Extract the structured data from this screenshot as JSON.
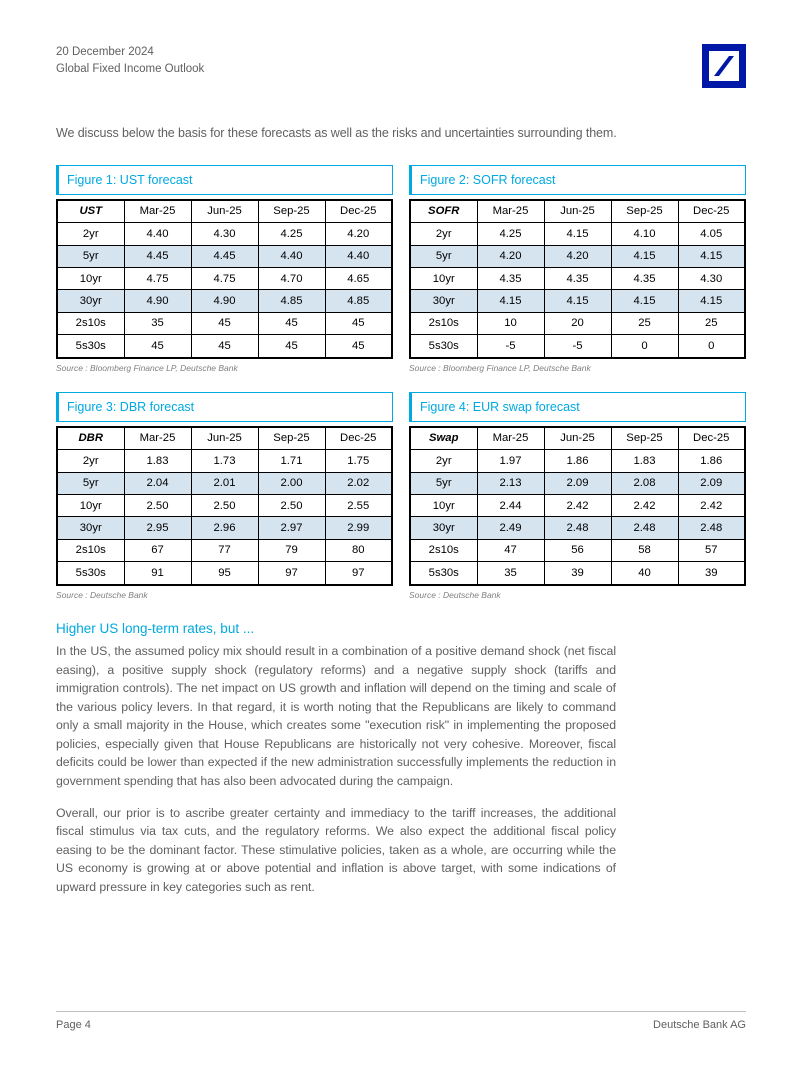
{
  "header": {
    "date": "20 December 2024",
    "title": "Global Fixed Income Outlook"
  },
  "colors": {
    "accent": "#00a9e0",
    "logoBlue": "#0018a8",
    "shadeRow": "#d6e4f0",
    "textGray": "#606060"
  },
  "intro": "We discuss below the basis for these forecasts as well as the risks and uncertainties surrounding them.",
  "figures": [
    {
      "title": "Figure 1: UST forecast",
      "source": "Source : Bloomberg Finance LP, Deutsche Bank",
      "headName": "UST",
      "columns": [
        "Mar-25",
        "Jun-25",
        "Sep-25",
        "Dec-25"
      ],
      "rows": [
        {
          "label": "2yr",
          "shade": false,
          "vals": [
            "4.40",
            "4.30",
            "4.25",
            "4.20"
          ]
        },
        {
          "label": "5yr",
          "shade": true,
          "vals": [
            "4.45",
            "4.45",
            "4.40",
            "4.40"
          ]
        },
        {
          "label": "10yr",
          "shade": false,
          "vals": [
            "4.75",
            "4.75",
            "4.70",
            "4.65"
          ]
        },
        {
          "label": "30yr",
          "shade": true,
          "vals": [
            "4.90",
            "4.90",
            "4.85",
            "4.85"
          ]
        },
        {
          "label": "2s10s",
          "shade": false,
          "vals": [
            "35",
            "45",
            "45",
            "45"
          ]
        },
        {
          "label": "5s30s",
          "shade": false,
          "vals": [
            "45",
            "45",
            "45",
            "45"
          ]
        }
      ]
    },
    {
      "title": "Figure 2: SOFR forecast",
      "source": "Source : Bloomberg Finance LP, Deutsche Bank",
      "headName": "SOFR",
      "columns": [
        "Mar-25",
        "Jun-25",
        "Sep-25",
        "Dec-25"
      ],
      "rows": [
        {
          "label": "2yr",
          "shade": false,
          "vals": [
            "4.25",
            "4.15",
            "4.10",
            "4.05"
          ]
        },
        {
          "label": "5yr",
          "shade": true,
          "vals": [
            "4.20",
            "4.20",
            "4.15",
            "4.15"
          ]
        },
        {
          "label": "10yr",
          "shade": false,
          "vals": [
            "4.35",
            "4.35",
            "4.35",
            "4.30"
          ]
        },
        {
          "label": "30yr",
          "shade": true,
          "vals": [
            "4.15",
            "4.15",
            "4.15",
            "4.15"
          ]
        },
        {
          "label": "2s10s",
          "shade": false,
          "vals": [
            "10",
            "20",
            "25",
            "25"
          ]
        },
        {
          "label": "5s30s",
          "shade": false,
          "vals": [
            "-5",
            "-5",
            "0",
            "0"
          ]
        }
      ]
    },
    {
      "title": "Figure 3: DBR forecast",
      "source": "Source : Deutsche Bank",
      "headName": "DBR",
      "columns": [
        "Mar-25",
        "Jun-25",
        "Sep-25",
        "Dec-25"
      ],
      "rows": [
        {
          "label": "2yr",
          "shade": false,
          "vals": [
            "1.83",
            "1.73",
            "1.71",
            "1.75"
          ]
        },
        {
          "label": "5yr",
          "shade": true,
          "vals": [
            "2.04",
            "2.01",
            "2.00",
            "2.02"
          ]
        },
        {
          "label": "10yr",
          "shade": false,
          "vals": [
            "2.50",
            "2.50",
            "2.50",
            "2.55"
          ]
        },
        {
          "label": "30yr",
          "shade": true,
          "vals": [
            "2.95",
            "2.96",
            "2.97",
            "2.99"
          ]
        },
        {
          "label": "2s10s",
          "shade": false,
          "vals": [
            "67",
            "77",
            "79",
            "80"
          ]
        },
        {
          "label": "5s30s",
          "shade": false,
          "vals": [
            "91",
            "95",
            "97",
            "97"
          ]
        }
      ]
    },
    {
      "title": "Figure 4: EUR swap forecast",
      "source": "Source : Deutsche Bank",
      "headName": "Swap",
      "columns": [
        "Mar-25",
        "Jun-25",
        "Sep-25",
        "Dec-25"
      ],
      "rows": [
        {
          "label": "2yr",
          "shade": false,
          "vals": [
            "1.97",
            "1.86",
            "1.83",
            "1.86"
          ]
        },
        {
          "label": "5yr",
          "shade": true,
          "vals": [
            "2.13",
            "2.09",
            "2.08",
            "2.09"
          ]
        },
        {
          "label": "10yr",
          "shade": false,
          "vals": [
            "2.44",
            "2.42",
            "2.42",
            "2.42"
          ]
        },
        {
          "label": "30yr",
          "shade": true,
          "vals": [
            "2.49",
            "2.48",
            "2.48",
            "2.48"
          ]
        },
        {
          "label": "2s10s",
          "shade": false,
          "vals": [
            "47",
            "56",
            "58",
            "57"
          ]
        },
        {
          "label": "5s30s",
          "shade": false,
          "vals": [
            "35",
            "39",
            "40",
            "39"
          ]
        }
      ]
    }
  ],
  "section": {
    "heading": "Higher US long-term rates, but ...",
    "p1": "In the US, the assumed policy mix should result in a combination of a positive demand shock (net fiscal easing), a positive supply shock (regulatory reforms) and a negative supply shock (tariffs and immigration controls). The net impact on US growth and inflation will depend on the timing and scale of the various policy levers. In that regard, it is worth noting that the Republicans are likely to command only a small majority in the House, which creates some \"execution risk\" in implementing the proposed policies, especially given that House Republicans are historically not very cohesive. Moreover, fiscal deficits could be lower than expected if the new administration successfully implements the reduction in government spending that has also been advocated during the campaign.",
    "p2": "Overall, our prior is to ascribe greater certainty and immediacy to the tariff increases, the additional fiscal stimulus via tax cuts, and the regulatory reforms. We also expect the additional fiscal policy easing to be the dominant factor. These stimulative policies, taken as a whole, are occurring while the US economy is growing at or above potential and inflation is above target, with some indications of upward pressure in key categories such as rent."
  },
  "footer": {
    "left": "Page 4",
    "right": "Deutsche Bank AG"
  }
}
